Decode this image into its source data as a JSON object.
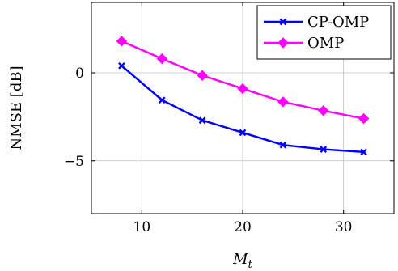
{
  "chart_data": {
    "type": "line",
    "title": "",
    "xlabel": "M",
    "xlabel_subscript": "t",
    "ylabel": "NMSE [dB]",
    "xlim": [
      5,
      35
    ],
    "ylim": [
      -8,
      4
    ],
    "xticks": [
      10,
      20,
      30
    ],
    "yticks": [
      -5,
      0
    ],
    "ytick_labels": [
      "−5",
      "0"
    ],
    "grid": true,
    "legend_position": "top-right",
    "series": [
      {
        "name": "CP-OMP",
        "color": "#0000ff",
        "marker": "x",
        "x": [
          8,
          12,
          16,
          20,
          24,
          28,
          32
        ],
        "y": [
          0.4,
          -1.55,
          -2.7,
          -3.4,
          -4.1,
          -4.35,
          -4.5
        ]
      },
      {
        "name": "OMP",
        "color": "#ff00ff",
        "marker": "diamond",
        "x": [
          8,
          12,
          16,
          20,
          24,
          28,
          32
        ],
        "y": [
          1.8,
          0.8,
          -0.15,
          -0.9,
          -1.65,
          -2.15,
          -2.6
        ]
      }
    ]
  }
}
